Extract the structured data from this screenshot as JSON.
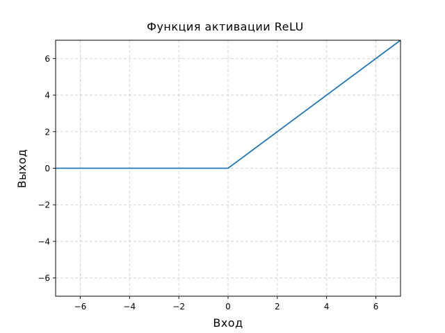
{
  "chart_data": {
    "type": "line",
    "title": "Функция активации ReLU",
    "xlabel": "Вход",
    "ylabel": "Выход",
    "xlim": [
      -7,
      7
    ],
    "ylim": [
      -7,
      7
    ],
    "grid": true,
    "x_ticks": [
      -6,
      -4,
      -2,
      0,
      2,
      4,
      6
    ],
    "y_ticks": [
      -6,
      -4,
      -2,
      0,
      2,
      4,
      6
    ],
    "x_tick_labels": [
      "−6",
      "−4",
      "−2",
      "0",
      "2",
      "4",
      "6"
    ],
    "y_tick_labels": [
      "−6",
      "−4",
      "−2",
      "0",
      "2",
      "4",
      "6"
    ],
    "series": [
      {
        "color": "#1f77b4",
        "x": [
          -7,
          0,
          7
        ],
        "y": [
          0,
          0,
          7
        ]
      }
    ]
  }
}
